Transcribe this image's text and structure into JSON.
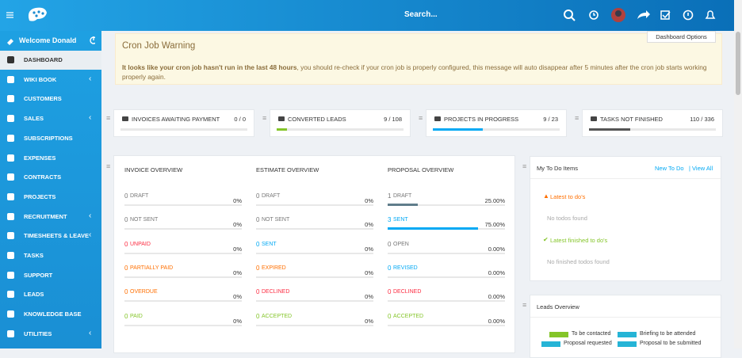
{
  "topbar": {
    "search": "Search..."
  },
  "sidebar": {
    "welcome": "Welcome Donald",
    "menu": [
      {
        "label": "DASHBOARD",
        "sub": false
      },
      {
        "label": "WIKI BOOK",
        "sub": true
      },
      {
        "label": "CUSTOMERS",
        "sub": false
      },
      {
        "label": "SALES",
        "sub": true
      },
      {
        "label": "SUBSCRIPTIONS",
        "sub": false
      },
      {
        "label": "EXPENSES",
        "sub": false
      },
      {
        "label": "CONTRACTS",
        "sub": false
      },
      {
        "label": "PROJECTS",
        "sub": false
      },
      {
        "label": "RECRUITMENT",
        "sub": true
      },
      {
        "label": "TIMESHEETS & LEAVE",
        "sub": true
      },
      {
        "label": "TASKS",
        "sub": false
      },
      {
        "label": "SUPPORT",
        "sub": false
      },
      {
        "label": "LEADS",
        "sub": false
      },
      {
        "label": "KNOWLEDGE BASE",
        "sub": false
      },
      {
        "label": "UTILITIES",
        "sub": true
      }
    ]
  },
  "warning": {
    "title": "Cron Job Warning",
    "bold": "It looks like your cron job hasn't run in the last 48 hours",
    "text": ", you should re-check if your cron job is properly configured, this message will auto disappear after 5 minutes after the cron job starts working properly again."
  },
  "dashboard_options": "Dashboard Options",
  "stats": [
    {
      "label": "INVOICES AWAITING PAYMENT",
      "value": "0 / 0",
      "color": "#777"
    },
    {
      "label": "CONVERTED LEADS",
      "value": "9 / 108",
      "color": "#84c529"
    },
    {
      "label": "PROJECTS IN PROGRESS",
      "value": "9 / 23",
      "color": "#03a9f4"
    },
    {
      "label": "TASKS NOT FINISHED",
      "value": "110 / 336",
      "color": "#555"
    }
  ],
  "overview": [
    {
      "title": "INVOICE OVERVIEW",
      "rows": [
        {
          "count": 0,
          "label": "DRAFT",
          "percent": "0%",
          "color": "#777"
        },
        {
          "count": 0,
          "label": "NOT SENT",
          "percent": "0%",
          "color": "#777"
        },
        {
          "count": 0,
          "label": "UNPAID",
          "percent": "0%",
          "color": "#fc2d42"
        },
        {
          "count": 0,
          "label": "PARTIALLY PAID",
          "percent": "0%",
          "color": "#ff6f00"
        },
        {
          "count": 0,
          "label": "OVERDUE",
          "percent": "0%",
          "color": "#ff6f00"
        },
        {
          "count": 0,
          "label": "PAID",
          "percent": "0%",
          "color": "#84c529"
        }
      ]
    },
    {
      "title": "ESTIMATE OVERVIEW",
      "rows": [
        {
          "count": 0,
          "label": "DRAFT",
          "percent": "0%",
          "color": "#777"
        },
        {
          "count": 0,
          "label": "NOT SENT",
          "percent": "0%",
          "color": "#777"
        },
        {
          "count": 0,
          "label": "SENT",
          "percent": "0%",
          "color": "#03a9f4"
        },
        {
          "count": 0,
          "label": "EXPIRED",
          "percent": "0%",
          "color": "#ff6f00"
        },
        {
          "count": 0,
          "label": "DECLINED",
          "percent": "0%",
          "color": "#fc2d42"
        },
        {
          "count": 0,
          "label": "ACCEPTED",
          "percent": "0%",
          "color": "#84c529"
        }
      ]
    },
    {
      "title": "PROPOSAL OVERVIEW",
      "rows": [
        {
          "count": 1,
          "label": "DRAFT",
          "percent": "25.00%",
          "color": "#777",
          "bar": "#607d8b"
        },
        {
          "count": 3,
          "label": "SENT",
          "percent": "75.00%",
          "color": "#03a9f4",
          "bar": "#03a9f4"
        },
        {
          "count": 0,
          "label": "OPEN",
          "percent": "0.00%",
          "color": "#777"
        },
        {
          "count": 0,
          "label": "REVISED",
          "percent": "0.00%",
          "color": "#03a9f4"
        },
        {
          "count": 0,
          "label": "DECLINED",
          "percent": "0.00%",
          "color": "#fc2d42"
        },
        {
          "count": 0,
          "label": "ACCEPTED",
          "percent": "0.00%",
          "color": "#84c529"
        }
      ]
    }
  ],
  "todo": {
    "title": "My To Do Items",
    "new": "New To Do",
    "view_all": "| View All",
    "latest": "Latest to do's",
    "no_todos": "No todos found",
    "finished": "Latest finished to do's",
    "no_finished": "No finished todos found"
  },
  "leads": {
    "title": "Leads Overview",
    "legend": [
      {
        "label": "To be contacted",
        "color": "#84c529"
      },
      {
        "label": "Briefing to be attended",
        "color": "#26b4d6"
      },
      {
        "label": "Proposal requested",
        "color": "#26b4d6"
      },
      {
        "label": "Proposal to be submitted",
        "color": "#26b4d6"
      }
    ]
  }
}
